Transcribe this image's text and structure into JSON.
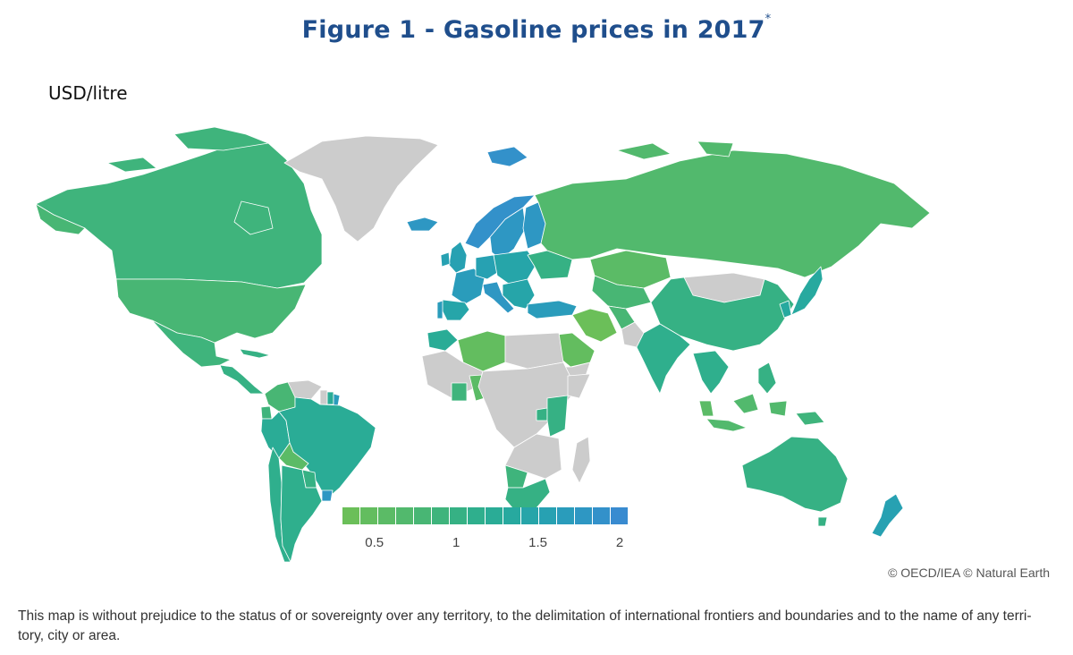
{
  "title": "Figure 1 - Gasoline prices in 2017",
  "title_marker": "*",
  "unit": "USD/litre",
  "legend": {
    "min": 0.25,
    "max": 2.0,
    "ticks": [
      {
        "value": 0.5,
        "label": "0.5"
      },
      {
        "value": 1,
        "label": "1"
      },
      {
        "value": 1.5,
        "label": "1.5"
      },
      {
        "value": 2,
        "label": "2"
      }
    ],
    "colors": [
      "#6bbf59",
      "#63bd5f",
      "#5bbb66",
      "#52b96d",
      "#48b674",
      "#3fb47c",
      "#36b184",
      "#2faf8d",
      "#2aac96",
      "#27a99f",
      "#26a5a9",
      "#27a1b2",
      "#2a9cbb",
      "#2e97c3",
      "#3391ca",
      "#398bd0"
    ],
    "no_data_color": "#cccccc"
  },
  "regions": [
    {
      "name": "Canada",
      "price": 0.9
    },
    {
      "name": "United States",
      "price": 0.7
    },
    {
      "name": "Mexico",
      "price": 0.9
    },
    {
      "name": "Central America",
      "price": 1.0
    },
    {
      "name": "Greenland",
      "price": null
    },
    {
      "name": "Iceland",
      "price": 1.7
    },
    {
      "name": "Colombia",
      "price": 0.75
    },
    {
      "name": "Venezuela",
      "price": null
    },
    {
      "name": "Guyana",
      "price": null
    },
    {
      "name": "Suriname",
      "price": 1.2
    },
    {
      "name": "French Guiana",
      "price": 1.6
    },
    {
      "name": "Ecuador",
      "price": 0.8
    },
    {
      "name": "Peru",
      "price": 1.15
    },
    {
      "name": "Brazil",
      "price": 1.15
    },
    {
      "name": "Bolivia",
      "price": 0.55
    },
    {
      "name": "Paraguay",
      "price": 1.0
    },
    {
      "name": "Uruguay",
      "price": 1.7
    },
    {
      "name": "Chile",
      "price": 1.1
    },
    {
      "name": "Argentina",
      "price": 1.05
    },
    {
      "name": "Norway",
      "price": 1.8
    },
    {
      "name": "Sweden",
      "price": 1.7
    },
    {
      "name": "Finland",
      "price": 1.7
    },
    {
      "name": "United Kingdom",
      "price": 1.55
    },
    {
      "name": "Ireland",
      "price": 1.55
    },
    {
      "name": "France",
      "price": 1.6
    },
    {
      "name": "Spain",
      "price": 1.4
    },
    {
      "name": "Portugal",
      "price": 1.65
    },
    {
      "name": "Germany",
      "price": 1.55
    },
    {
      "name": "Italy",
      "price": 1.75
    },
    {
      "name": "Central Europe",
      "price": 1.4
    },
    {
      "name": "Balkans",
      "price": 1.35
    },
    {
      "name": "Turkey",
      "price": 1.6
    },
    {
      "name": "Ukraine",
      "price": 0.95
    },
    {
      "name": "Russia",
      "price": 0.65
    },
    {
      "name": "Kazakhstan",
      "price": 0.55
    },
    {
      "name": "Central Asia",
      "price": 0.75
    },
    {
      "name": "Mongolia",
      "price": null
    },
    {
      "name": "China",
      "price": 0.95
    },
    {
      "name": "Korea",
      "price": 1.3
    },
    {
      "name": "Japan",
      "price": 1.25
    },
    {
      "name": "Iran",
      "price": 0.35
    },
    {
      "name": "Afghanistan",
      "price": 0.7
    },
    {
      "name": "Pakistan",
      "price": null
    },
    {
      "name": "India",
      "price": 1.05
    },
    {
      "name": "Saudi Arabia",
      "price": 0.4
    },
    {
      "name": "Yemen",
      "price": null
    },
    {
      "name": "Southeast Asia",
      "price": 1.1
    },
    {
      "name": "Indonesia",
      "price": 0.65
    },
    {
      "name": "Malaysia",
      "price": 0.5
    },
    {
      "name": "Philippines",
      "price": 1.0
    },
    {
      "name": "Papua New Guinea",
      "price": 0.9
    },
    {
      "name": "Australia",
      "price": 1.0
    },
    {
      "name": "New Zealand",
      "price": 1.55
    },
    {
      "name": "Morocco",
      "price": 1.15
    },
    {
      "name": "Algeria",
      "price": 0.45
    },
    {
      "name": "North Africa",
      "price": null
    },
    {
      "name": "West Africa",
      "price": null
    },
    {
      "name": "Nigeria",
      "price": 0.5
    },
    {
      "name": "Ghana",
      "price": 0.9
    },
    {
      "name": "Central Africa",
      "price": null
    },
    {
      "name": "Kenya",
      "price": 0.95
    },
    {
      "name": "Uganda",
      "price": 1.0
    },
    {
      "name": "East Africa",
      "price": null
    },
    {
      "name": "Southern Africa",
      "price": null
    },
    {
      "name": "Botswana",
      "price": 0.8
    },
    {
      "name": "South Africa",
      "price": 0.95
    },
    {
      "name": "Madagascar",
      "price": null
    }
  ],
  "credit": "© OECD/IEA © Natural Earth",
  "disclaimer": "This map is without prejudice to the status of or sovereignty over any territory, to the delimitation of international frontiers and boundaries and to the name of any terri-tory, city or area."
}
